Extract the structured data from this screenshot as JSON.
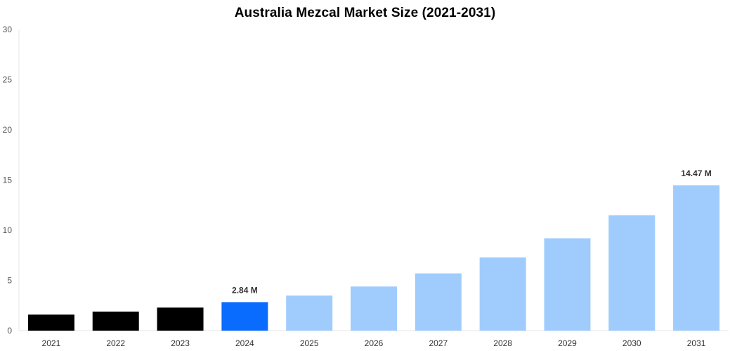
{
  "chart_data": {
    "type": "bar",
    "title": "Australia Mezcal Market Size (2021-2031)",
    "xlabel": "",
    "ylabel": "",
    "ylim": [
      0,
      30
    ],
    "yticks": [
      0,
      5,
      10,
      15,
      20,
      25,
      30
    ],
    "grid": false,
    "categories": [
      "2021",
      "2022",
      "2023",
      "2024",
      "2025",
      "2026",
      "2027",
      "2028",
      "2029",
      "2030",
      "2031"
    ],
    "values": [
      1.6,
      1.9,
      2.3,
      2.84,
      3.5,
      4.4,
      5.7,
      7.3,
      9.2,
      11.5,
      14.47
    ],
    "colors": [
      "#000000",
      "#000000",
      "#000000",
      "#0a6cff",
      "#a0ccfd",
      "#a0ccfd",
      "#a0ccfd",
      "#a0ccfd",
      "#a0ccfd",
      "#a0ccfd",
      "#a0ccfd"
    ],
    "data_labels": [
      {
        "index": 3,
        "text": "2.84 M"
      },
      {
        "index": 10,
        "text": "14.47 M"
      }
    ]
  }
}
